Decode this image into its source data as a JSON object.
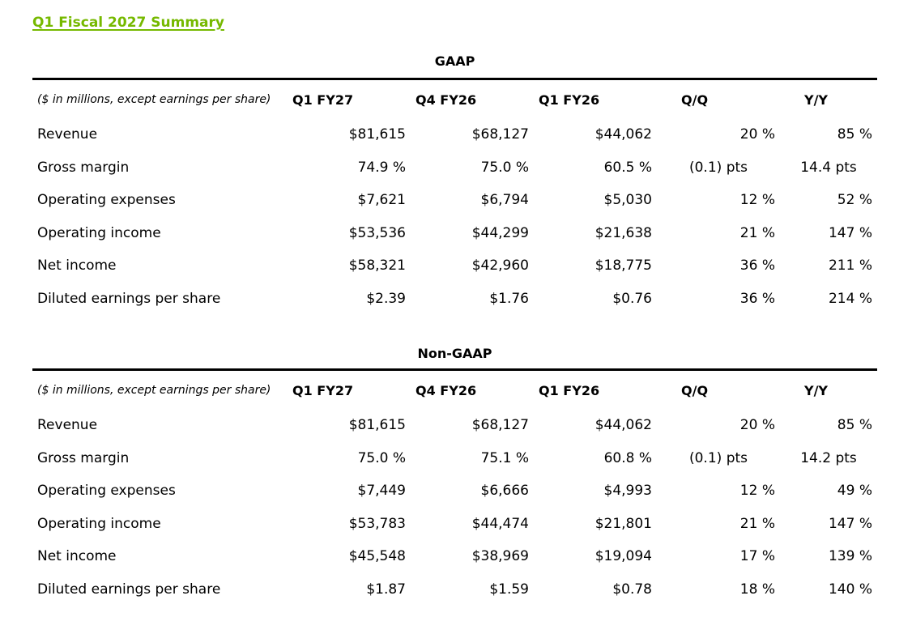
{
  "page": {
    "title": "Q1 Fiscal 2027 Summary",
    "accent_color": "#76b900"
  },
  "gaap": {
    "caption": "GAAP",
    "units_note": "($ in millions, except earnings per share)",
    "columns": [
      "Q1 FY27",
      "Q4 FY26",
      "Q1 FY26",
      "Q/Q",
      "Y/Y"
    ],
    "rows": [
      {
        "label": "Revenue",
        "values": [
          "$81,615",
          "$68,127",
          "$44,062",
          "20 %",
          "85 %"
        ]
      },
      {
        "label": "Gross margin",
        "values": [
          "74.9 %",
          "75.0 %",
          "60.5 %",
          "(0.1) pts",
          "14.4 pts"
        ]
      },
      {
        "label": "Operating expenses",
        "values": [
          "$7,621",
          "$6,794",
          "$5,030",
          "12 %",
          "52 %"
        ]
      },
      {
        "label": "Operating income",
        "values": [
          "$53,536",
          "$44,299",
          "$21,638",
          "21 %",
          "147 %"
        ]
      },
      {
        "label": "Net income",
        "values": [
          "$58,321",
          "$42,960",
          "$18,775",
          "36 %",
          "211 %"
        ]
      },
      {
        "label": "Diluted earnings per share",
        "values": [
          "$2.39",
          "$1.76",
          "$0.76",
          "36 %",
          "214 %"
        ]
      }
    ]
  },
  "non_gaap": {
    "caption": "Non-GAAP",
    "units_note": "($ in millions, except earnings per share)",
    "columns": [
      "Q1 FY27",
      "Q4 FY26",
      "Q1 FY26",
      "Q/Q",
      "Y/Y"
    ],
    "rows": [
      {
        "label": "Revenue",
        "values": [
          "$81,615",
          "$68,127",
          "$44,062",
          "20 %",
          "85 %"
        ]
      },
      {
        "label": "Gross margin",
        "values": [
          "75.0 %",
          "75.1 %",
          "60.8 %",
          "(0.1) pts",
          "14.2 pts"
        ]
      },
      {
        "label": "Operating expenses",
        "values": [
          "$7,449",
          "$6,666",
          "$4,993",
          "12 %",
          "49 %"
        ]
      },
      {
        "label": "Operating income",
        "values": [
          "$53,783",
          "$44,474",
          "$21,801",
          "21 %",
          "147 %"
        ]
      },
      {
        "label": "Net income",
        "values": [
          "$45,548",
          "$38,969",
          "$19,094",
          "17 %",
          "139 %"
        ]
      },
      {
        "label": "Diluted earnings per share",
        "values": [
          "$1.87",
          "$1.59",
          "$0.78",
          "18 %",
          "140 %"
        ]
      }
    ]
  }
}
